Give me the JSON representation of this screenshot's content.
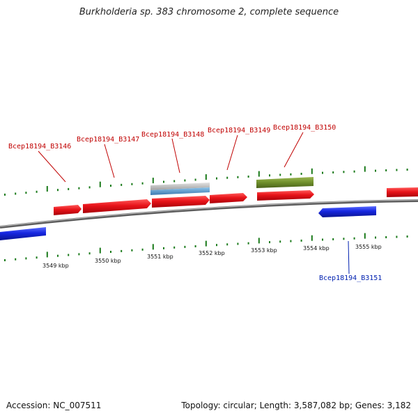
{
  "title": "Burkholderia sp. 383 chromosome 2, complete sequence",
  "footer": {
    "accession_label": "Accession:",
    "accession": "NC_007511",
    "summary": "Topology: circular; Length: 3,587,082 bp; Genes: 3,182"
  },
  "colors": {
    "forward_gene": "#e8141a",
    "reverse_gene": "#1626e0",
    "forward_label": "#c00000",
    "reverse_label": "#0020b0",
    "olive_feature": "#6f8f2c",
    "gray_feature": "#b8b8b8",
    "blue_feature": "#4f8fc0",
    "backbone": "#8a8a8a",
    "ticks": "#1a7a1a"
  },
  "tick_labels": [
    "3549 kbp",
    "3550 kbp",
    "3551 kbp",
    "3552 kbp",
    "3553 kbp",
    "3554 kbp",
    "3555 kbp"
  ],
  "gene_labels": [
    {
      "text": "Bcep18194_B3146",
      "strand": "forward"
    },
    {
      "text": "Bcep18194_B3147",
      "strand": "forward"
    },
    {
      "text": "Bcep18194_B3148",
      "strand": "forward"
    },
    {
      "text": "Bcep18194_B3149",
      "strand": "forward"
    },
    {
      "text": "Bcep18194_B3150",
      "strand": "forward"
    },
    {
      "text": "Bcep18194_B3151",
      "strand": "reverse"
    }
  ]
}
